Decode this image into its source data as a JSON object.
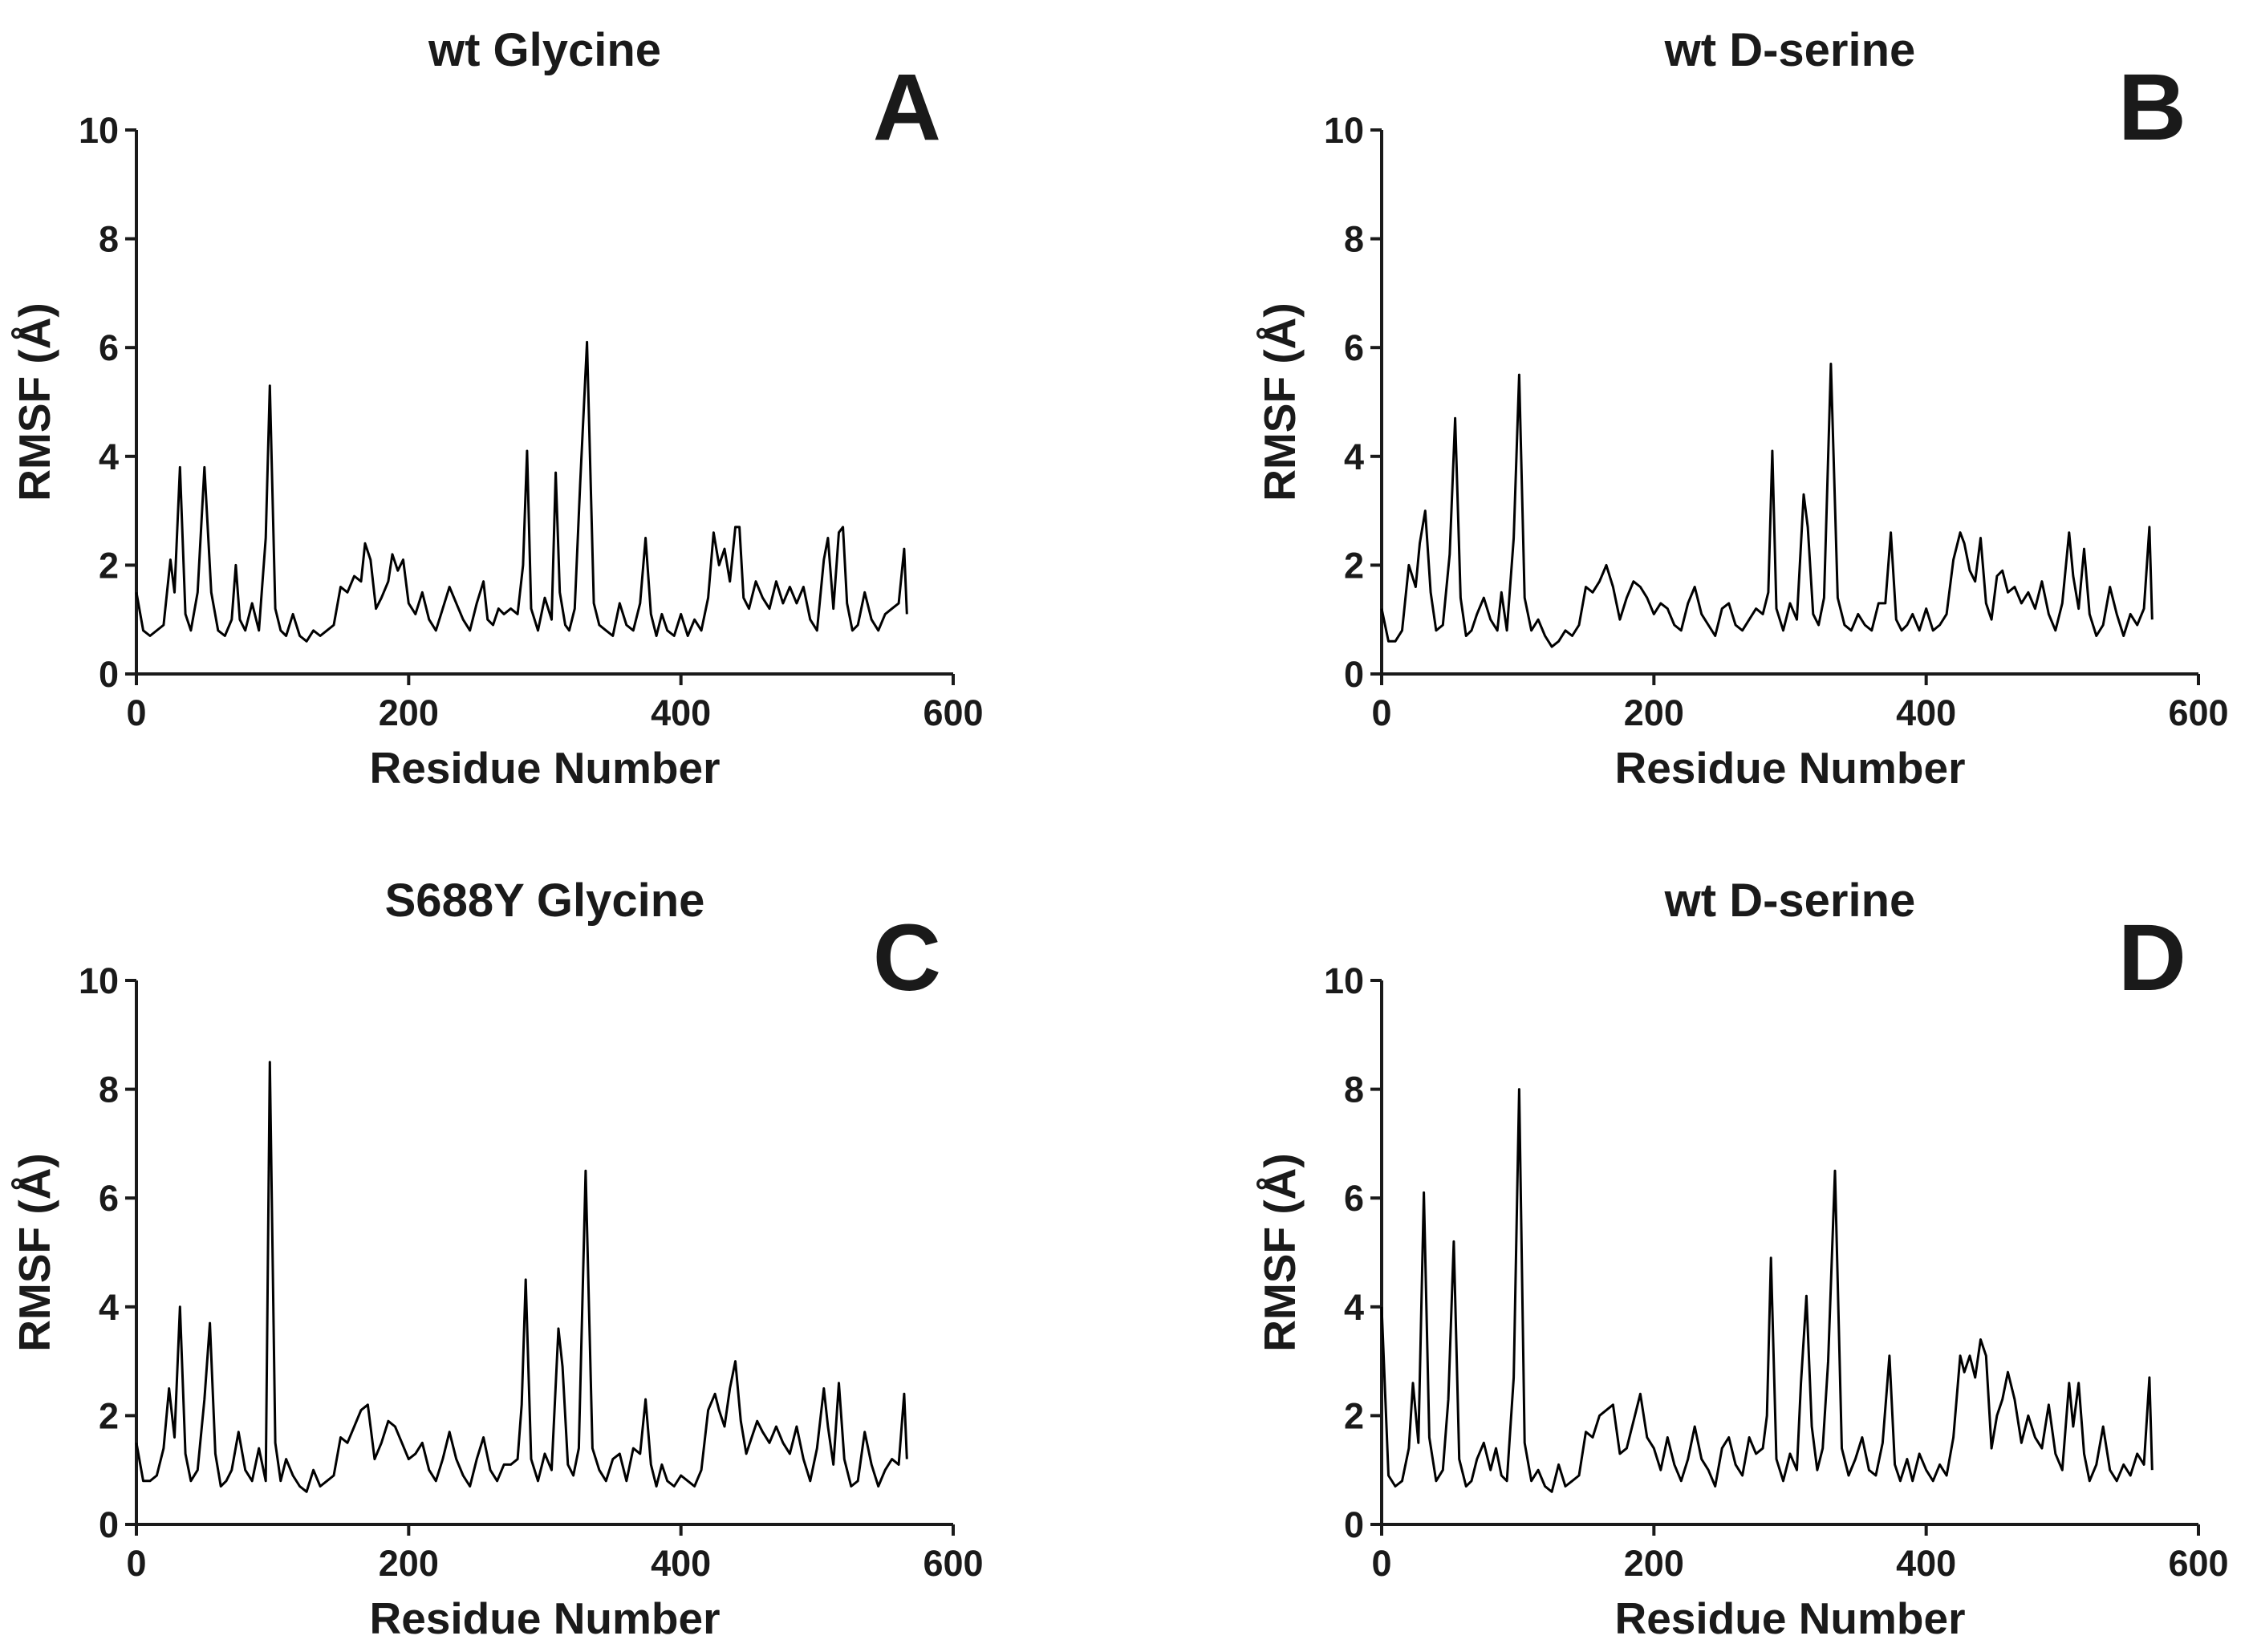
{
  "chart_data": [
    {
      "type": "line",
      "panel_label": "A",
      "title": "wt Glycine",
      "xlabel": "Residue Number",
      "ylabel": "RMSF (Å)",
      "xlim": [
        0,
        600
      ],
      "ylim": [
        0,
        10
      ],
      "xticks": [
        "0",
        "200",
        "400",
        "600"
      ],
      "yticks": [
        "0",
        "2",
        "4",
        "6",
        "8",
        "10"
      ],
      "grid": false,
      "color": "#000000",
      "series": [
        {
          "name": "RMSF",
          "x": [
            0,
            5,
            10,
            20,
            25,
            28,
            32,
            36,
            40,
            45,
            50,
            55,
            60,
            65,
            70,
            73,
            76,
            80,
            85,
            90,
            95,
            98,
            102,
            106,
            110,
            115,
            120,
            125,
            130,
            135,
            140,
            145,
            150,
            155,
            160,
            165,
            168,
            172,
            176,
            180,
            185,
            188,
            192,
            196,
            200,
            205,
            210,
            215,
            220,
            225,
            230,
            235,
            240,
            245,
            250,
            255,
            258,
            262,
            266,
            270,
            275,
            280,
            284,
            287,
            290,
            295,
            300,
            305,
            308,
            311,
            315,
            318,
            322,
            326,
            331,
            336,
            340,
            345,
            350,
            355,
            360,
            365,
            370,
            374,
            378,
            382,
            386,
            390,
            395,
            400,
            405,
            410,
            415,
            420,
            424,
            428,
            432,
            436,
            440,
            443,
            446,
            450,
            455,
            460,
            465,
            470,
            475,
            480,
            485,
            490,
            495,
            500,
            505,
            508,
            512,
            516,
            519,
            522,
            526,
            530,
            535,
            540,
            545,
            550,
            555,
            560,
            564,
            566
          ],
          "y": [
            1.5,
            0.8,
            0.7,
            0.9,
            2.1,
            1.5,
            3.8,
            1.1,
            0.8,
            1.5,
            3.8,
            1.5,
            0.8,
            0.7,
            1.0,
            2.0,
            1.0,
            0.8,
            1.3,
            0.8,
            2.5,
            5.3,
            1.2,
            0.8,
            0.7,
            1.1,
            0.7,
            0.6,
            0.8,
            0.7,
            0.8,
            0.9,
            1.6,
            1.5,
            1.8,
            1.7,
            2.4,
            2.1,
            1.2,
            1.4,
            1.7,
            2.2,
            1.9,
            2.1,
            1.3,
            1.1,
            1.5,
            1.0,
            0.8,
            1.2,
            1.6,
            1.3,
            1.0,
            0.8,
            1.3,
            1.7,
            1.0,
            0.9,
            1.2,
            1.1,
            1.2,
            1.1,
            2.0,
            4.1,
            1.2,
            0.8,
            1.4,
            1.0,
            3.7,
            1.5,
            0.9,
            0.8,
            1.2,
            3.5,
            6.1,
            1.3,
            0.9,
            0.8,
            0.7,
            1.3,
            0.9,
            0.8,
            1.3,
            2.5,
            1.1,
            0.7,
            1.1,
            0.8,
            0.7,
            1.1,
            0.7,
            1.0,
            0.8,
            1.4,
            2.6,
            2.0,
            2.3,
            1.7,
            2.7,
            2.7,
            1.4,
            1.2,
            1.7,
            1.4,
            1.2,
            1.7,
            1.3,
            1.6,
            1.3,
            1.6,
            1.0,
            0.8,
            2.1,
            2.5,
            1.2,
            2.6,
            2.7,
            1.3,
            0.8,
            0.9,
            1.5,
            1.0,
            0.8,
            1.1,
            1.2,
            1.3,
            2.3,
            1.1
          ]
        }
      ]
    },
    {
      "type": "line",
      "panel_label": "B",
      "title": "wt D-serine",
      "xlabel": "Residue Number",
      "ylabel": "RMSF (Å)",
      "xlim": [
        0,
        600
      ],
      "ylim": [
        0,
        10
      ],
      "xticks": [
        "0",
        "200",
        "400",
        "600"
      ],
      "yticks": [
        "0",
        "2",
        "4",
        "6",
        "8",
        "10"
      ],
      "grid": false,
      "color": "#000000",
      "series": [
        {
          "name": "RMSF",
          "x": [
            0,
            5,
            10,
            15,
            20,
            25,
            28,
            32,
            36,
            40,
            45,
            50,
            54,
            58,
            62,
            66,
            70,
            75,
            80,
            85,
            88,
            92,
            97,
            101,
            105,
            110,
            115,
            120,
            125,
            130,
            135,
            140,
            145,
            150,
            155,
            160,
            165,
            170,
            175,
            180,
            185,
            190,
            195,
            200,
            205,
            210,
            215,
            220,
            225,
            230,
            235,
            240,
            245,
            250,
            255,
            260,
            265,
            270,
            275,
            280,
            284,
            287,
            290,
            295,
            300,
            305,
            310,
            313,
            317,
            321,
            325,
            330,
            335,
            340,
            345,
            350,
            355,
            360,
            365,
            370,
            374,
            378,
            382,
            386,
            390,
            395,
            400,
            405,
            410,
            415,
            420,
            425,
            428,
            432,
            436,
            440,
            444,
            448,
            452,
            456,
            460,
            465,
            470,
            475,
            480,
            485,
            490,
            495,
            500,
            505,
            508,
            512,
            516,
            520,
            525,
            530,
            535,
            540,
            545,
            550,
            555,
            560,
            564,
            566
          ],
          "y": [
            1.2,
            0.6,
            0.6,
            0.8,
            2.0,
            1.6,
            2.4,
            3.0,
            1.5,
            0.8,
            0.9,
            2.2,
            4.7,
            1.4,
            0.7,
            0.8,
            1.1,
            1.4,
            1.0,
            0.8,
            1.5,
            0.8,
            2.5,
            5.5,
            1.4,
            0.8,
            1.0,
            0.7,
            0.5,
            0.6,
            0.8,
            0.7,
            0.9,
            1.6,
            1.5,
            1.7,
            2.0,
            1.6,
            1.0,
            1.4,
            1.7,
            1.6,
            1.4,
            1.1,
            1.3,
            1.2,
            0.9,
            0.8,
            1.3,
            1.6,
            1.1,
            0.9,
            0.7,
            1.2,
            1.3,
            0.9,
            0.8,
            1.0,
            1.2,
            1.1,
            1.5,
            4.1,
            1.2,
            0.8,
            1.3,
            1.0,
            3.3,
            2.7,
            1.1,
            0.9,
            1.4,
            5.7,
            1.4,
            0.9,
            0.8,
            1.1,
            0.9,
            0.8,
            1.3,
            1.3,
            2.6,
            1.0,
            0.8,
            0.9,
            1.1,
            0.8,
            1.2,
            0.8,
            0.9,
            1.1,
            2.1,
            2.6,
            2.4,
            1.9,
            1.7,
            2.5,
            1.3,
            1.0,
            1.8,
            1.9,
            1.5,
            1.6,
            1.3,
            1.5,
            1.2,
            1.7,
            1.1,
            0.8,
            1.3,
            2.6,
            1.8,
            1.2,
            2.3,
            1.1,
            0.7,
            0.9,
            1.6,
            1.1,
            0.7,
            1.1,
            0.9,
            1.2,
            2.7,
            1.0
          ]
        }
      ]
    },
    {
      "type": "line",
      "panel_label": "C",
      "title": "S688Y Glycine",
      "xlabel": "Residue Number",
      "ylabel": "RMSF (Å)",
      "xlim": [
        0,
        600
      ],
      "ylim": [
        0,
        10
      ],
      "xticks": [
        "0",
        "200",
        "400",
        "600"
      ],
      "yticks": [
        "0",
        "2",
        "4",
        "6",
        "8",
        "10"
      ],
      "grid": false,
      "color": "#000000",
      "series": [
        {
          "name": "RMSF",
          "x": [
            0,
            5,
            10,
            15,
            20,
            24,
            28,
            32,
            36,
            40,
            45,
            50,
            54,
            58,
            62,
            66,
            70,
            75,
            80,
            85,
            90,
            95,
            98,
            102,
            106,
            110,
            115,
            120,
            125,
            130,
            135,
            140,
            145,
            150,
            155,
            160,
            165,
            170,
            175,
            180,
            185,
            190,
            195,
            200,
            205,
            210,
            215,
            220,
            225,
            230,
            235,
            240,
            245,
            250,
            255,
            260,
            265,
            270,
            275,
            280,
            283,
            286,
            290,
            295,
            300,
            305,
            310,
            313,
            317,
            321,
            325,
            330,
            335,
            340,
            345,
            350,
            355,
            360,
            365,
            370,
            374,
            378,
            382,
            386,
            390,
            395,
            400,
            405,
            410,
            415,
            420,
            425,
            428,
            432,
            436,
            440,
            444,
            448,
            452,
            456,
            460,
            465,
            470,
            475,
            480,
            485,
            490,
            495,
            500,
            505,
            508,
            512,
            516,
            520,
            525,
            530,
            535,
            540,
            545,
            550,
            555,
            560,
            564,
            566
          ],
          "y": [
            1.5,
            0.8,
            0.8,
            0.9,
            1.4,
            2.5,
            1.6,
            4.0,
            1.3,
            0.8,
            1.0,
            2.3,
            3.7,
            1.3,
            0.7,
            0.8,
            1.0,
            1.7,
            1.0,
            0.8,
            1.4,
            0.8,
            8.5,
            1.5,
            0.8,
            1.2,
            0.9,
            0.7,
            0.6,
            1.0,
            0.7,
            0.8,
            0.9,
            1.6,
            1.5,
            1.8,
            2.1,
            2.2,
            1.2,
            1.5,
            1.9,
            1.8,
            1.5,
            1.2,
            1.3,
            1.5,
            1.0,
            0.8,
            1.2,
            1.7,
            1.2,
            0.9,
            0.7,
            1.2,
            1.6,
            1.0,
            0.8,
            1.1,
            1.1,
            1.2,
            2.2,
            4.5,
            1.2,
            0.8,
            1.3,
            1.0,
            3.6,
            2.9,
            1.1,
            0.9,
            1.4,
            6.5,
            1.4,
            1.0,
            0.8,
            1.2,
            1.3,
            0.8,
            1.4,
            1.3,
            2.3,
            1.1,
            0.7,
            1.1,
            0.8,
            0.7,
            0.9,
            0.8,
            0.7,
            1.0,
            2.1,
            2.4,
            2.1,
            1.8,
            2.5,
            3.0,
            1.9,
            1.3,
            1.6,
            1.9,
            1.7,
            1.5,
            1.8,
            1.5,
            1.3,
            1.8,
            1.2,
            0.8,
            1.4,
            2.5,
            1.8,
            1.1,
            2.6,
            1.2,
            0.7,
            0.8,
            1.7,
            1.1,
            0.7,
            1.0,
            1.2,
            1.1,
            2.4,
            1.2
          ]
        }
      ]
    },
    {
      "type": "line",
      "panel_label": "D",
      "title": "wt D-serine",
      "xlabel": "Residue Number",
      "ylabel": "RMSF (Å)",
      "xlim": [
        0,
        600
      ],
      "ylim": [
        0,
        10
      ],
      "xticks": [
        "0",
        "200",
        "400",
        "600"
      ],
      "yticks": [
        "0",
        "2",
        "4",
        "6",
        "8",
        "10"
      ],
      "grid": false,
      "color": "#000000",
      "series": [
        {
          "name": "RMSF",
          "x": [
            0,
            5,
            10,
            15,
            20,
            23,
            27,
            31,
            35,
            40,
            45,
            49,
            53,
            57,
            62,
            66,
            70,
            75,
            80,
            84,
            88,
            92,
            97,
            101,
            105,
            110,
            115,
            120,
            125,
            130,
            135,
            140,
            145,
            150,
            155,
            160,
            165,
            170,
            175,
            180,
            185,
            190,
            195,
            200,
            205,
            210,
            215,
            220,
            225,
            230,
            235,
            240,
            245,
            250,
            255,
            260,
            265,
            270,
            275,
            280,
            283,
            286,
            290,
            295,
            300,
            305,
            308,
            312,
            316,
            320,
            324,
            328,
            333,
            338,
            343,
            348,
            353,
            358,
            363,
            368,
            373,
            377,
            381,
            386,
            390,
            395,
            400,
            405,
            410,
            415,
            420,
            425,
            428,
            432,
            436,
            440,
            444,
            448,
            452,
            456,
            460,
            465,
            470,
            475,
            480,
            485,
            490,
            495,
            500,
            505,
            508,
            512,
            516,
            520,
            525,
            530,
            535,
            540,
            545,
            550,
            555,
            560,
            564,
            566
          ],
          "y": [
            4.0,
            0.9,
            0.7,
            0.8,
            1.4,
            2.6,
            1.5,
            6.1,
            1.6,
            0.8,
            1.0,
            2.3,
            5.2,
            1.2,
            0.7,
            0.8,
            1.2,
            1.5,
            1.0,
            1.4,
            0.9,
            0.8,
            2.7,
            8.0,
            1.5,
            0.8,
            1.0,
            0.7,
            0.6,
            1.1,
            0.7,
            0.8,
            0.9,
            1.7,
            1.6,
            2.0,
            2.1,
            2.2,
            1.3,
            1.4,
            1.9,
            2.4,
            1.6,
            1.4,
            1.0,
            1.6,
            1.1,
            0.8,
            1.2,
            1.8,
            1.2,
            1.0,
            0.7,
            1.4,
            1.6,
            1.1,
            0.9,
            1.6,
            1.3,
            1.4,
            2.0,
            4.9,
            1.2,
            0.8,
            1.3,
            1.0,
            2.6,
            4.2,
            1.8,
            1.0,
            1.4,
            3.0,
            6.5,
            1.4,
            0.9,
            1.2,
            1.6,
            1.0,
            0.9,
            1.5,
            3.1,
            1.1,
            0.8,
            1.2,
            0.8,
            1.3,
            1.0,
            0.8,
            1.1,
            0.9,
            1.6,
            3.1,
            2.8,
            3.1,
            2.7,
            3.4,
            3.1,
            1.4,
            2.0,
            2.3,
            2.8,
            2.3,
            1.5,
            2.0,
            1.6,
            1.4,
            2.2,
            1.3,
            1.0,
            2.6,
            1.8,
            2.6,
            1.3,
            0.8,
            1.1,
            1.8,
            1.0,
            0.8,
            1.1,
            0.9,
            1.3,
            1.1,
            2.7,
            1.0
          ]
        }
      ]
    }
  ]
}
